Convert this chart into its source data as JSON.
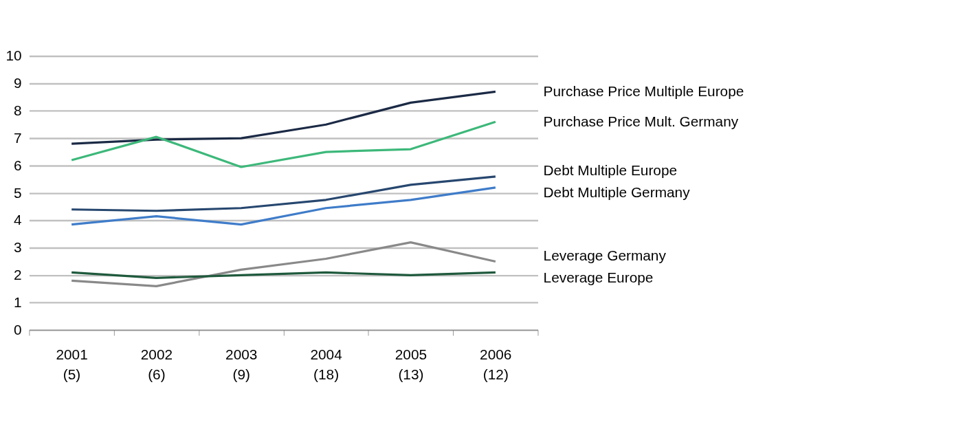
{
  "chart_data": {
    "type": "line",
    "categories": [
      "2001\n(5)",
      "2002\n(6)",
      "2003\n(9)",
      "2004\n(18)",
      "2005\n(13)",
      "2006\n(12)"
    ],
    "series": [
      {
        "name": "Purchase Price Multiple Europe",
        "color": "#1b2a45",
        "values": [
          6.8,
          6.95,
          7.0,
          7.5,
          8.3,
          8.7
        ]
      },
      {
        "name": "Purchase Price Mult. Germany",
        "color": "#3db87a",
        "values": [
          6.2,
          7.05,
          5.95,
          6.5,
          6.6,
          7.6
        ]
      },
      {
        "name": "Debt Multiple Europe",
        "color": "#27476f",
        "values": [
          4.4,
          4.35,
          4.45,
          4.75,
          5.3,
          5.6
        ]
      },
      {
        "name": "Debt Multiple Germany",
        "color": "#3f7cc9",
        "values": [
          3.85,
          4.15,
          3.85,
          4.45,
          4.75,
          5.2
        ]
      },
      {
        "name": "Leverage Germany",
        "color": "#898989",
        "values": [
          1.8,
          1.6,
          2.2,
          2.6,
          3.2,
          2.5
        ]
      },
      {
        "name": "Leverage Europe",
        "color": "#1f5a3d",
        "values": [
          2.1,
          1.9,
          2.0,
          2.1,
          2.0,
          2.1
        ]
      }
    ],
    "ylim": [
      0,
      10
    ],
    "yticks": [
      0,
      1,
      2,
      3,
      4,
      5,
      6,
      7,
      8,
      9,
      10
    ],
    "grid": "y",
    "legend": false,
    "marker": "none",
    "line_style": "solid"
  }
}
